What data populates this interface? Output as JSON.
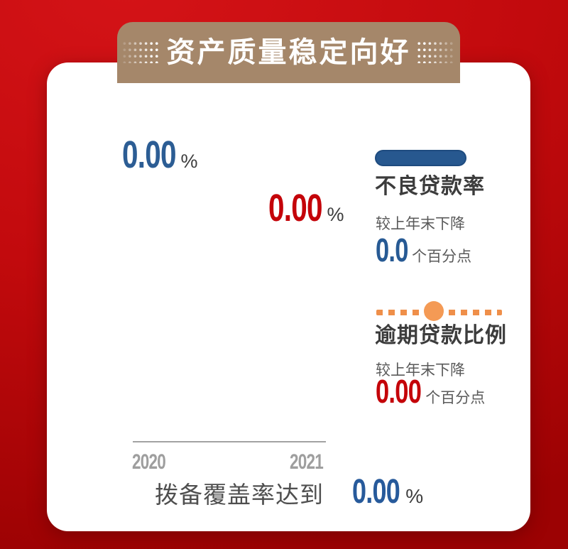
{
  "banner": {
    "title": "资产质量稳定向好"
  },
  "chart": {
    "points": [
      {
        "year": "2020",
        "value": "0.00",
        "unit": "%",
        "color": "#2c5d94"
      },
      {
        "year": "2021",
        "value": "0.00",
        "unit": "%",
        "color": "#c40309"
      }
    ],
    "x_ticks": [
      "2020",
      "2021"
    ]
  },
  "legend": {
    "items": [
      {
        "title": "不良贷款率",
        "marker": "solid-blue-line",
        "color": "#27588f",
        "change_label": "较上年末下降",
        "change_value": "0.0",
        "change_unit": "个百分点"
      },
      {
        "title": "逾期贷款比例",
        "marker": "orange-dashed-line-with-dot",
        "color": "#ef8f4a",
        "change_label": "较上年末下降",
        "change_value": "0.00",
        "change_unit": "个百分点"
      }
    ]
  },
  "footer": {
    "label": "拨备覆盖率达到",
    "value": "0.00",
    "unit": "%"
  },
  "chart_data": {
    "type": "line",
    "title": "资产质量稳定向好",
    "categories": [
      "2020",
      "2021"
    ],
    "series": [
      {
        "name": "不良贷款率",
        "values": [
          0.0,
          0.0
        ],
        "color": "#27588f",
        "line_style": "solid",
        "data_labels": [
          "0.00%",
          "0.00%"
        ],
        "change_note": "较上年末下降 0.0 个百分点"
      },
      {
        "name": "逾期贷款比例",
        "values": [
          0.0,
          0.0
        ],
        "color": "#ef8f4a",
        "line_style": "dashed",
        "change_note": "较上年末下降 0.00 个百分点"
      }
    ],
    "legend_position": "right",
    "grid": false,
    "annotation": "拨备覆盖率达到 0.00%"
  },
  "colors": {
    "background_red": "#c20a0d",
    "banner_tan": "#a5876a",
    "card_white": "#ffffff",
    "blue": "#275a94",
    "red": "#c40309",
    "orange": "#ef8f4a",
    "title_text": "#3c3c3c",
    "sub_text": "#5a5a5a",
    "tick_gray": "#9e9e9e"
  }
}
